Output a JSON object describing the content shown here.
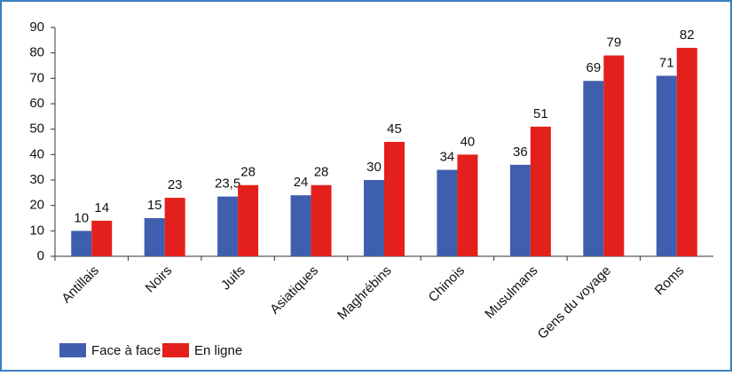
{
  "chart_data": {
    "type": "bar",
    "categories": [
      "Antillais",
      "Noirs",
      "Juifs",
      "Asiatiques",
      "Maghrébins",
      "Chinois",
      "Musulmans",
      "Gens du voyage",
      "Roms"
    ],
    "series": [
      {
        "name": "Face à face",
        "color": "#3f5fae",
        "values": [
          10,
          15,
          23.5,
          24,
          30,
          34,
          36,
          69,
          71
        ],
        "value_labels": [
          "10",
          "15",
          "23,5",
          "24",
          "30",
          "34",
          "36",
          "69",
          "71"
        ]
      },
      {
        "name": "En ligne",
        "color": "#e3201b",
        "values": [
          14,
          23,
          28,
          28,
          45,
          40,
          51,
          79,
          82
        ]
      }
    ],
    "ylim": [
      0,
      90
    ],
    "yticks": [
      0,
      10,
      20,
      30,
      40,
      50,
      60,
      70,
      80,
      90
    ],
    "grid": false
  }
}
